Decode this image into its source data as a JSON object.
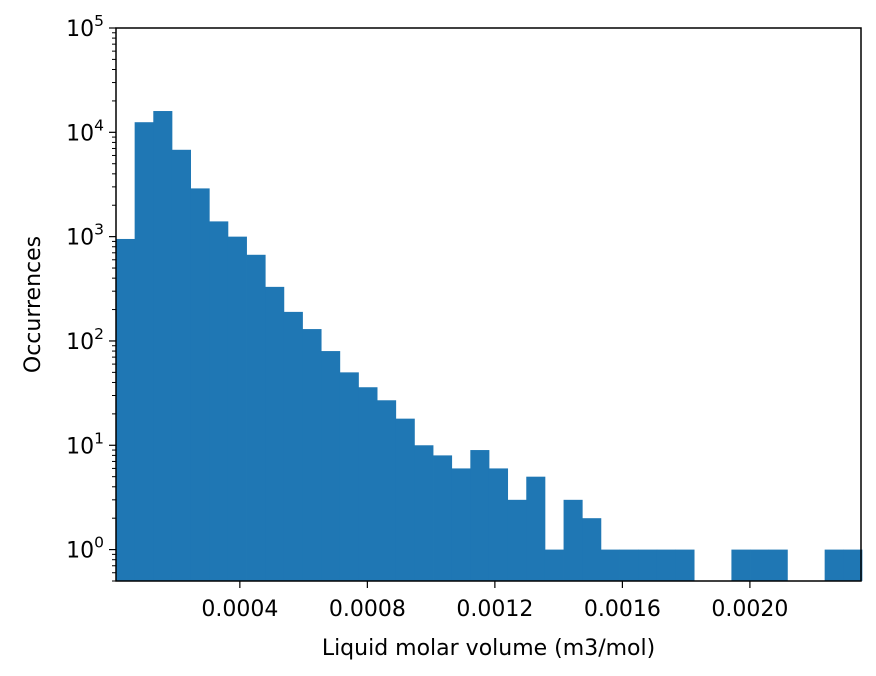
{
  "chart_data": {
    "type": "bar",
    "title": "",
    "xlabel": "Liquid molar volume (m3/mol)",
    "ylabel": "Occurrences",
    "yscale": "log",
    "ylim": [
      0.5,
      100000
    ],
    "xlim": [
      1.15e-05,
      0.0023485
    ],
    "bin_width": 5.85e-05,
    "grid": false,
    "legend": "none",
    "bar_color": "#1f77b4",
    "x": [
      1.15e-05,
      7e-05,
      0.0001285,
      0.000187,
      0.0002455,
      0.000304,
      0.0003625,
      0.000421,
      0.0004795,
      0.000538,
      0.0005965,
      0.000655,
      0.0007135,
      0.000772,
      0.0008305,
      0.000889,
      0.0009475,
      0.001006,
      0.0010645,
      0.001123,
      0.0011815,
      0.00124,
      0.0012985,
      0.001357,
      0.0014155,
      0.001474,
      0.0015325,
      0.001591,
      0.0016495,
      0.001708,
      0.0017665,
      0.001825,
      0.0018835,
      0.001942,
      0.0020005,
      0.002059,
      0.0021175,
      0.002176,
      0.0022345,
      0.002293
    ],
    "values": [
      950,
      12500,
      16000,
      6800,
      2900,
      1400,
      1000,
      670,
      330,
      190,
      130,
      80,
      50,
      36,
      27,
      18,
      10,
      8,
      6,
      9,
      6,
      3,
      5,
      1,
      3,
      2,
      1,
      1,
      1,
      1,
      1,
      0,
      0,
      1,
      1,
      1,
      0,
      0,
      1,
      1
    ],
    "x_ticks": [
      {
        "value": 0.0004,
        "label": "0.0004"
      },
      {
        "value": 0.0008,
        "label": "0.0008"
      },
      {
        "value": 0.0012,
        "label": "0.0012"
      },
      {
        "value": 0.0016,
        "label": "0.0016"
      },
      {
        "value": 0.002,
        "label": "0.0020"
      }
    ],
    "y_ticks": [
      {
        "value": 1,
        "base": "10",
        "exp": "0"
      },
      {
        "value": 10,
        "base": "10",
        "exp": "1"
      },
      {
        "value": 100,
        "base": "10",
        "exp": "2"
      },
      {
        "value": 1000,
        "base": "10",
        "exp": "3"
      },
      {
        "value": 10000,
        "base": "10",
        "exp": "4"
      },
      {
        "value": 100000,
        "base": "10",
        "exp": "5"
      }
    ]
  }
}
